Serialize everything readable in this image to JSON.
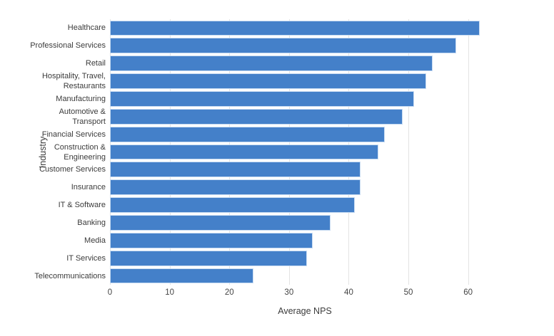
{
  "chart_data": {
    "type": "bar",
    "orientation": "horizontal",
    "title": "",
    "xlabel": "Average NPS",
    "ylabel": "Industry",
    "categories": [
      "Healthcare",
      "Professional Services",
      "Retail",
      "Hospitality, Travel, Restaurants",
      "Manufacturing",
      "Automotive & Transport",
      "Financial Services",
      "Construction & Engineering",
      "Customer Services",
      "Insurance",
      "IT & Software",
      "Banking",
      "Media",
      "IT Services",
      "Telecommunications"
    ],
    "label_lines": [
      [
        "Healthcare"
      ],
      [
        "Professional Services"
      ],
      [
        "Retail"
      ],
      [
        "Hospitality, Travel,",
        "Restaurants"
      ],
      [
        "Manufacturing"
      ],
      [
        "Automotive &",
        "Transport"
      ],
      [
        "Financial Services"
      ],
      [
        "Construction &",
        "Engineering"
      ],
      [
        "Customer Services"
      ],
      [
        "Insurance"
      ],
      [
        "IT & Software"
      ],
      [
        "Banking"
      ],
      [
        "Media"
      ],
      [
        "IT Services"
      ],
      [
        "Telecommunications"
      ]
    ],
    "values": [
      62,
      58,
      54,
      53,
      51,
      49,
      46,
      45,
      42,
      42,
      41,
      37,
      34,
      33,
      24
    ],
    "xticks": [
      0,
      10,
      20,
      30,
      40,
      50,
      60
    ],
    "xlim": [
      0,
      65.3
    ],
    "grid": true,
    "legend": false,
    "colors": {
      "bar": "#4480c9",
      "gridline": "#e3e3e3",
      "tick_text": "#444444",
      "axis_title_text": "#3b3b3b",
      "background": "#ffffff"
    }
  }
}
